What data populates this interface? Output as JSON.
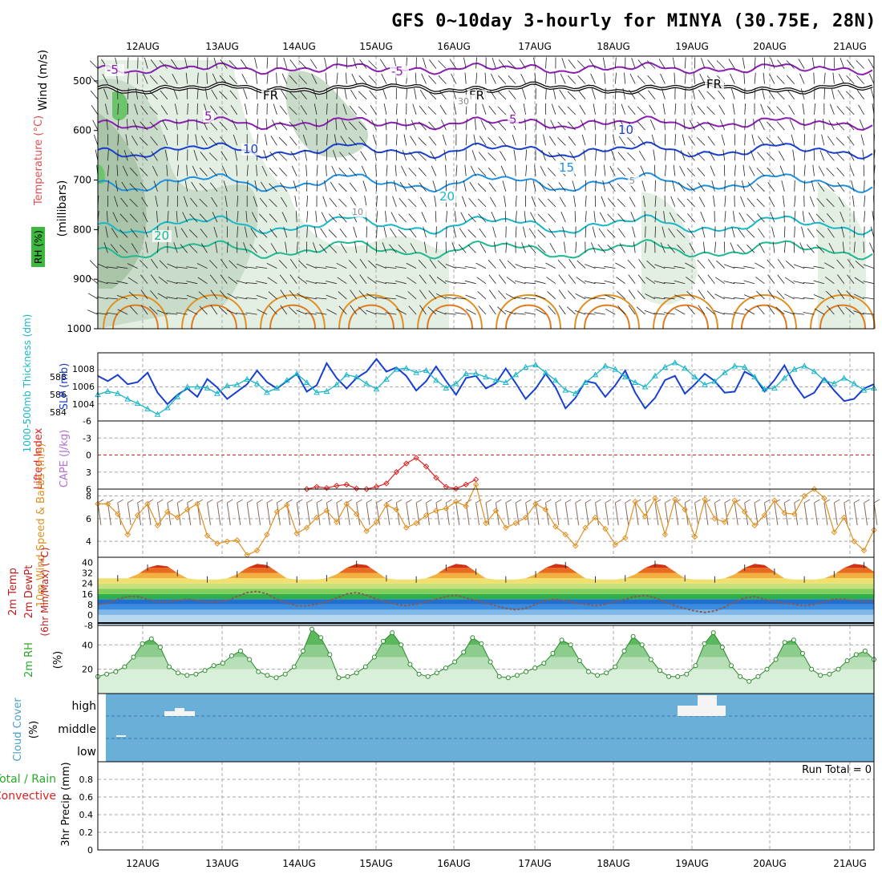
{
  "title": "GFS 0~10day 3-hourly for MINYA (30.75E, 28N)",
  "dates": [
    "12AUG",
    "13AUG",
    "14AUG",
    "15AUG",
    "16AUG",
    "17AUG",
    "18AUG",
    "19AUG",
    "20AUG",
    "21AUG"
  ],
  "colors": {
    "purple": "#8a1fb0",
    "black": "#000000",
    "blue": "#1840d0",
    "cyan": "#19b6c8",
    "teal": "#20b890",
    "orange": "#e09020",
    "rh_green": "#2aa82a",
    "cloud_bg": "#6aafd8",
    "grid": "#a8a8a8",
    "red": "#dd2222",
    "magenta": "#cc33cc"
  },
  "chart_data": [
    {
      "panel": "upper_air",
      "type": "line",
      "ylabel_parts": [
        "Wind (m/s)",
        "Temperature (°C)",
        "RH (%)",
        "(millibars)"
      ],
      "y_ticks": [
        500,
        600,
        700,
        800,
        900,
        1000
      ],
      "ylim": [
        1000,
        450
      ],
      "isotherm_labels": [
        "-5",
        "-5",
        "FR",
        "FR",
        "FR",
        "5",
        "5",
        "10",
        "10",
        "15",
        "20",
        "20",
        "30",
        "10",
        "5"
      ]
    },
    {
      "panel": "slp_thickness",
      "type": "line",
      "ylabel_parts": [
        "1000-500mb Thickness (dm)",
        "SLP (mb)"
      ],
      "left_ticks": [
        "584",
        "586",
        "588"
      ],
      "right_ticks": [
        "1004",
        "1006",
        "1008"
      ],
      "series": [
        {
          "name": "SLP (mb)",
          "ylim": [
            1002.5,
            1009
          ],
          "values": [
            1006.8,
            1006.3,
            1006.9,
            1006.0,
            1006.2,
            1007.1,
            1005.2,
            1004.1,
            1005.0,
            1005.6,
            1004.8,
            1006.5,
            1005.7,
            1004.6,
            1005.3,
            1006.0,
            1007.3,
            1006.2,
            1005.6,
            1006.3,
            1007.0,
            1005.3,
            1005.9,
            1008.0,
            1006.6,
            1005.6,
            1006.6,
            1007.2,
            1008.4,
            1007.2,
            1007.6,
            1006.8,
            1005.4,
            1006.3,
            1007.7,
            1006.3,
            1005.0,
            1006.6,
            1006.8,
            1005.6,
            1006.1,
            1007.5,
            1006.1,
            1004.6,
            1005.6,
            1007.0,
            1005.7,
            1003.7,
            1004.7,
            1006.3,
            1006.1,
            1004.8,
            1005.9,
            1007.3,
            1005.2,
            1003.7,
            1004.7,
            1006.4,
            1006.8,
            1005.1,
            1006.0,
            1007.0,
            1006.3,
            1005.2,
            1005.3,
            1007.2,
            1006.7,
            1005.3,
            1006.4,
            1007.8,
            1006.0,
            1004.7,
            1005.2,
            1006.6,
            1005.4,
            1004.4,
            1004.6,
            1005.6,
            1006.0
          ]
        },
        {
          "name": "1000-500mb Thickness (dm)",
          "ylim": [
            583.2,
            589.4
          ],
          "values": [
            585.6,
            585.9,
            585.7,
            585.2,
            584.8,
            584.3,
            583.8,
            584.4,
            585.4,
            586.3,
            586.3,
            586.2,
            585.7,
            586.4,
            586.5,
            587.0,
            586.6,
            585.8,
            586.2,
            586.9,
            587.5,
            586.7,
            585.8,
            585.9,
            586.5,
            587.4,
            587.2,
            586.6,
            586.1,
            587.0,
            587.9,
            588.0,
            587.6,
            587.8,
            586.9,
            586.2,
            586.6,
            587.5,
            587.5,
            587.2,
            586.9,
            586.7,
            587.4,
            588.1,
            588.3,
            587.6,
            586.9,
            586.0,
            585.7,
            586.7,
            587.4,
            588.2,
            587.9,
            587.2,
            586.7,
            586.3,
            587.3,
            588.1,
            588.5,
            588.0,
            587.2,
            586.5,
            586.8,
            587.6,
            588.2,
            588.1,
            587.2,
            586.1,
            586.2,
            587.1,
            587.9,
            588.2,
            587.7,
            586.9,
            586.6,
            587.1,
            586.6,
            586.0,
            586.2
          ]
        }
      ]
    },
    {
      "panel": "lifted_index",
      "type": "line",
      "ylabel_parts": [
        "Lifted Index",
        "CAPE (J/kg)"
      ],
      "y_ticks": [
        "-6",
        "-3",
        "0",
        "3",
        "6"
      ],
      "ylim": [
        6,
        -6
      ],
      "series": [
        {
          "name": "Lifted Index",
          "x_index": [
            21,
            22,
            23,
            24,
            25,
            26,
            27,
            28,
            29,
            30,
            31,
            32,
            33,
            34,
            35,
            36,
            37,
            38
          ],
          "values": [
            6.0,
            5.6,
            5.8,
            5.4,
            5.2,
            5.9,
            6.0,
            5.6,
            5.0,
            3.0,
            1.5,
            0.5,
            2.0,
            4.0,
            5.6,
            5.9,
            5.2,
            4.3
          ]
        }
      ]
    },
    {
      "panel": "wind10m",
      "type": "line",
      "ylabel_parts": [
        "10m Wind Speed & Barbs (m/s)"
      ],
      "y_ticks": [
        "4",
        "6",
        "8"
      ],
      "ylim": [
        2.6,
        8.6
      ],
      "series": [
        {
          "name": "10m Wind Speed",
          "values": [
            7.3,
            7.3,
            6.4,
            4.6,
            6.3,
            7.3,
            5.4,
            6.6,
            6.1,
            6.8,
            7.3,
            4.5,
            3.8,
            4.0,
            4.1,
            2.8,
            3.2,
            4.6,
            6.6,
            7.2,
            4.7,
            5.2,
            6.1,
            6.7,
            5.7,
            7.3,
            6.4,
            4.9,
            5.7,
            7.2,
            6.8,
            5.2,
            5.6,
            6.3,
            6.7,
            6.9,
            7.5,
            7.1,
            9.0,
            5.6,
            6.7,
            5.2,
            5.6,
            6.1,
            7.3,
            6.8,
            5.3,
            4.6,
            3.6,
            5.2,
            6.1,
            5.1,
            3.7,
            4.3,
            7.5,
            6.2,
            7.8,
            4.6,
            7.7,
            6.8,
            4.4,
            7.7,
            6.0,
            5.7,
            7.6,
            6.6,
            5.4,
            6.3,
            7.6,
            6.5,
            6.4,
            8.0,
            8.6,
            7.8,
            4.8,
            6.1,
            4.0,
            3.2,
            5.0
          ]
        }
      ]
    },
    {
      "panel": "temp2m",
      "type": "area",
      "ylabel_parts": [
        "2m Temp",
        "2m DewPt",
        "(6hr Min/Max) (°C)"
      ],
      "y_ticks": [
        "-8",
        "0",
        "8",
        "16",
        "24",
        "32",
        "40"
      ],
      "ylim": [
        -8,
        44
      ],
      "series": [
        {
          "name": "2m Temp",
          "values": [
            28,
            28,
            28,
            28,
            31,
            36,
            38,
            37,
            32,
            28,
            27,
            27,
            27,
            28,
            31,
            36,
            39,
            38,
            33,
            28,
            27,
            27,
            27,
            28,
            31,
            36,
            39,
            38,
            33,
            28,
            27,
            27,
            27,
            28,
            31,
            36,
            39,
            38,
            33,
            28,
            27,
            27,
            27,
            28,
            31,
            36,
            39,
            38,
            33,
            28,
            27,
            27,
            27,
            28,
            31,
            36,
            39,
            38,
            33,
            28,
            27,
            27,
            27,
            28,
            31,
            36,
            39,
            38,
            33,
            28,
            27,
            27,
            27,
            28,
            31,
            36,
            39,
            38,
            33
          ]
        },
        {
          "name": "2m DewPt",
          "values": [
            8,
            9,
            12,
            14,
            14,
            12,
            10,
            10,
            11,
            12,
            11,
            10,
            10,
            11,
            14,
            17,
            18,
            16,
            12,
            9,
            7,
            7,
            8,
            10,
            13,
            16,
            17,
            15,
            12,
            10,
            8,
            7,
            8,
            10,
            12,
            14,
            15,
            13,
            11,
            9,
            7,
            5,
            4,
            5,
            8,
            11,
            12,
            11,
            9,
            8,
            7,
            8,
            10,
            12,
            14,
            15,
            13,
            10,
            7,
            5,
            3,
            2,
            3,
            6,
            10,
            13,
            14,
            12,
            10,
            9,
            8,
            7,
            8,
            10,
            12,
            12,
            11,
            10,
            11
          ]
        }
      ]
    },
    {
      "panel": "rh2m",
      "type": "area",
      "ylabel_parts": [
        "2m RH",
        "(%)"
      ],
      "y_ticks": [
        "20",
        "40"
      ],
      "ylim": [
        0,
        56
      ],
      "series": [
        {
          "name": "2m RH",
          "values": [
            14,
            16,
            18,
            22,
            30,
            41,
            45,
            38,
            22,
            17,
            15,
            16,
            19,
            23,
            25,
            31,
            35,
            28,
            18,
            15,
            13,
            16,
            22,
            35,
            53,
            46,
            32,
            13,
            14,
            17,
            22,
            30,
            43,
            50,
            40,
            24,
            16,
            14,
            17,
            21,
            26,
            34,
            46,
            41,
            26,
            14,
            13,
            15,
            18,
            21,
            25,
            33,
            44,
            40,
            27,
            18,
            15,
            17,
            22,
            35,
            47,
            40,
            28,
            19,
            14,
            14,
            16,
            23,
            41,
            50,
            38,
            23,
            14,
            10,
            14,
            20,
            28,
            42,
            44,
            33,
            20,
            15,
            16,
            20,
            27,
            32,
            35,
            28
          ]
        }
      ]
    },
    {
      "panel": "cloud_cover",
      "type": "area",
      "ylabel_parts": [
        "Cloud Cover",
        "(%)"
      ],
      "y_ticks": [
        "low",
        "middle",
        "high"
      ]
    },
    {
      "panel": "precip",
      "type": "bar",
      "ylabel_parts": [
        "Total / Rain",
        "Convective",
        "3hr Precip (mm)"
      ],
      "y_ticks": [
        "0",
        "0.2",
        "0.4",
        "0.6",
        "0.8"
      ],
      "ylim": [
        0,
        1.0
      ],
      "run_total": "Run Total = 0",
      "values": []
    }
  ]
}
